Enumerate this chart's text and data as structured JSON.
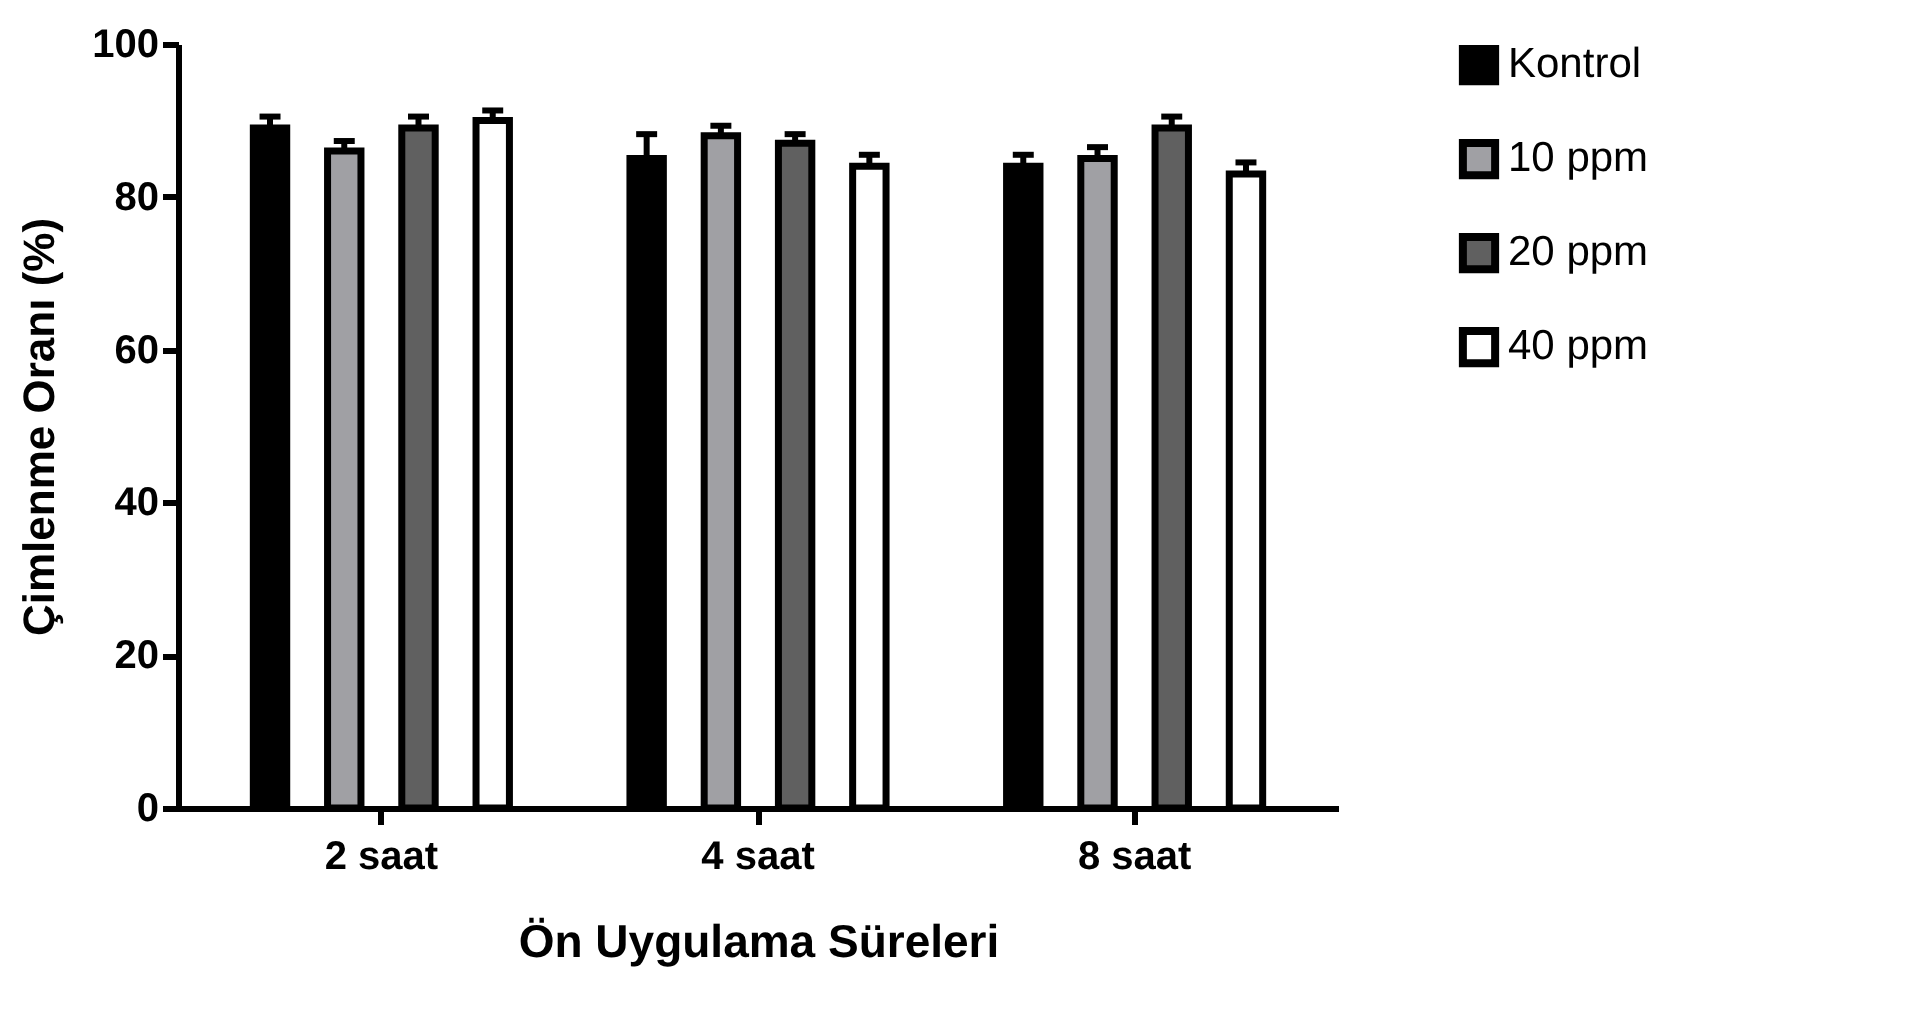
{
  "chart_data": {
    "type": "bar",
    "xlabel": "Ön Uygulama Süreleri",
    "ylabel": "Çimlenme Oranı (%)",
    "categories": [
      "2 saat",
      "4 saat",
      "8 saat"
    ],
    "series": [
      {
        "name": "Kontrol",
        "color": "#000000",
        "values": [
          89,
          85,
          84
        ],
        "errors": [
          [
            89,
            90.5
          ],
          [
            85,
            88.2
          ],
          [
            84,
            85.5
          ]
        ]
      },
      {
        "name": "10 ppm",
        "color": "#a0a0a4",
        "values": [
          86,
          88,
          85
        ],
        "errors": [
          [
            86,
            87.3
          ],
          [
            88,
            89.3
          ],
          [
            85,
            86.5
          ]
        ]
      },
      {
        "name": "20 ppm",
        "color": "#606060",
        "values": [
          89,
          87,
          89
        ],
        "errors": [
          [
            89,
            90.5
          ],
          [
            87,
            88.2
          ],
          [
            89,
            90.5
          ]
        ]
      },
      {
        "name": "40 ppm",
        "color": "#ffffff",
        "values": [
          90,
          84,
          83
        ],
        "errors": [
          [
            90,
            91.3
          ],
          [
            84,
            85.5
          ],
          [
            83,
            84.5
          ]
        ]
      }
    ],
    "ylim": [
      0,
      100
    ],
    "yticks": [
      0,
      20,
      40,
      60,
      80,
      100
    ],
    "grid": false,
    "legend": "top right"
  }
}
